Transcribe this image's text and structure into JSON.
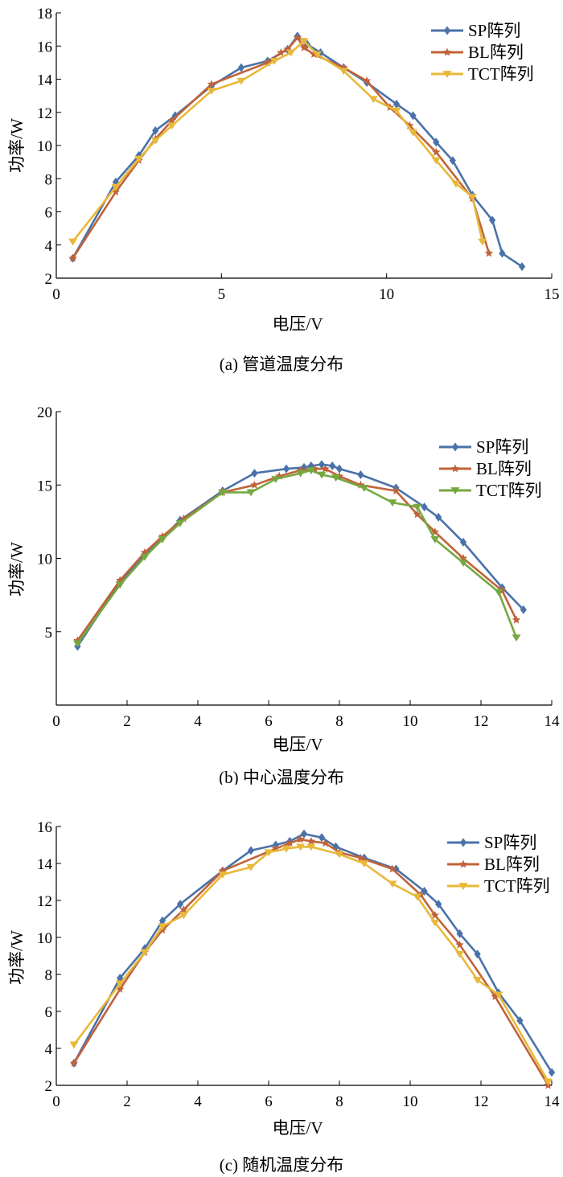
{
  "chart_data": [
    {
      "type": "line",
      "caption": "(a) 管道温度分布",
      "xlabel": "电压/V",
      "ylabel": "功率/W",
      "xlim": [
        0,
        15
      ],
      "ylim": [
        2,
        18
      ],
      "xticks": [
        0,
        5,
        10,
        15
      ],
      "yticks": [
        2,
        4,
        6,
        8,
        10,
        12,
        14,
        16,
        18
      ],
      "legend_position": "top-right",
      "series": [
        {
          "name": "SP阵列",
          "color": "#4a72a9",
          "marker": "diamond",
          "x": [
            0.5,
            1.8,
            2.5,
            3.0,
            3.6,
            4.7,
            5.6,
            6.4,
            7.0,
            7.3,
            7.6,
            8.0,
            8.7,
            9.4,
            10.3,
            10.8,
            11.5,
            12.0,
            12.6,
            13.2,
            13.5,
            14.1
          ],
          "y": [
            3.2,
            7.8,
            9.4,
            10.9,
            11.8,
            13.6,
            14.7,
            15.1,
            15.8,
            16.6,
            16.1,
            15.6,
            14.7,
            13.8,
            12.5,
            11.8,
            10.2,
            9.1,
            7.0,
            5.5,
            3.5,
            2.7
          ]
        },
        {
          "name": "BL阵列",
          "color": "#c0633a",
          "marker": "star",
          "x": [
            0.5,
            1.8,
            2.5,
            3.0,
            3.5,
            4.7,
            6.4,
            6.8,
            7.0,
            7.3,
            7.5,
            7.8,
            8.7,
            9.4,
            10.1,
            10.7,
            11.5,
            12.6,
            13.1
          ],
          "y": [
            3.2,
            7.2,
            9.1,
            10.4,
            11.5,
            13.7,
            15.0,
            15.6,
            15.8,
            16.5,
            15.9,
            15.5,
            14.7,
            13.9,
            12.3,
            11.2,
            9.6,
            6.8,
            3.5
          ],
          "x_continuation_note": ""
        },
        {
          "name": "TCT阵列",
          "color": "#e8b83a",
          "marker": "triangle-down",
          "x": [
            0.5,
            1.8,
            2.5,
            3.0,
            3.5,
            4.7,
            5.6,
            6.6,
            7.1,
            7.5,
            7.9,
            8.7,
            9.6,
            10.3,
            10.8,
            11.5,
            12.1,
            12.6,
            12.9
          ],
          "y": [
            4.2,
            7.5,
            9.2,
            10.3,
            11.2,
            13.3,
            13.9,
            15.1,
            15.6,
            16.3,
            15.5,
            14.5,
            12.8,
            12.1,
            10.8,
            9.1,
            7.7,
            6.9,
            4.2
          ]
        }
      ]
    },
    {
      "type": "line",
      "caption": "(b) 中心温度分布",
      "xlabel": "电压/V",
      "ylabel": "功率/W",
      "xlim": [
        0,
        14
      ],
      "ylim": [
        0,
        20
      ],
      "xticks": [
        0,
        2,
        4,
        6,
        8,
        10,
        12,
        14
      ],
      "yticks": [
        5,
        10,
        15,
        20
      ],
      "legend_position": "top-right",
      "series": [
        {
          "name": "SP阵列",
          "color": "#4a72a9",
          "marker": "diamond",
          "x": [
            0.6,
            1.8,
            2.5,
            3.0,
            3.5,
            4.7,
            5.6,
            6.5,
            7.0,
            7.2,
            7.5,
            7.8,
            8.0,
            8.6,
            9.6,
            10.4,
            10.8,
            11.5,
            12.6,
            13.2
          ],
          "y": [
            4.0,
            8.4,
            10.3,
            11.4,
            12.6,
            14.6,
            15.8,
            16.1,
            16.2,
            16.3,
            16.4,
            16.3,
            16.1,
            15.7,
            14.8,
            13.5,
            12.8,
            11.1,
            8.0,
            6.5
          ]
        },
        {
          "name": "BL阵列",
          "color": "#c0633a",
          "marker": "star",
          "x": [
            0.6,
            1.8,
            2.5,
            3.0,
            3.6,
            4.7,
            5.6,
            6.3,
            6.9,
            7.3,
            7.6,
            8.0,
            8.6,
            9.6,
            10.2,
            10.7,
            11.5,
            12.6,
            13.0
          ],
          "y": [
            4.4,
            8.5,
            10.4,
            11.5,
            12.7,
            14.5,
            15.0,
            15.6,
            16.0,
            16.1,
            16.1,
            15.6,
            15.0,
            14.6,
            13.0,
            11.8,
            10.0,
            7.8,
            5.8
          ]
        },
        {
          "name": "TCT阵列",
          "color": "#76a840",
          "marker": "triangle-down",
          "x": [
            0.6,
            1.8,
            2.5,
            3.0,
            3.5,
            4.7,
            5.5,
            6.2,
            6.9,
            7.2,
            7.5,
            7.9,
            8.7,
            9.5,
            10.2,
            10.7,
            11.5,
            12.5,
            13.0
          ],
          "y": [
            4.2,
            8.2,
            10.1,
            11.3,
            12.4,
            14.5,
            14.5,
            15.4,
            15.8,
            16.0,
            15.7,
            15.5,
            14.8,
            13.8,
            13.5,
            11.3,
            9.7,
            7.7,
            4.6
          ]
        }
      ]
    },
    {
      "type": "line",
      "caption": "(c) 随机温度分布",
      "xlabel": "电压/V",
      "ylabel": "功率/W",
      "xlim": [
        0,
        14
      ],
      "ylim": [
        2,
        16
      ],
      "xticks": [
        0,
        2,
        4,
        6,
        8,
        10,
        12,
        14
      ],
      "yticks": [
        2,
        4,
        6,
        8,
        10,
        12,
        14,
        16
      ],
      "legend_position": "top-right",
      "series": [
        {
          "name": "SP阵列",
          "color": "#4a72a9",
          "marker": "diamond",
          "x": [
            0.5,
            1.8,
            2.5,
            3.0,
            3.5,
            4.7,
            5.5,
            6.2,
            6.6,
            7.0,
            7.5,
            7.9,
            8.7,
            9.6,
            10.4,
            10.8,
            11.4,
            11.9,
            12.5,
            13.1,
            14.0
          ],
          "y": [
            3.2,
            7.8,
            9.4,
            10.9,
            11.8,
            13.6,
            14.7,
            15.0,
            15.2,
            15.6,
            15.4,
            14.9,
            14.3,
            13.7,
            12.5,
            11.8,
            10.2,
            9.1,
            7.0,
            5.5,
            2.7
          ]
        },
        {
          "name": "BL阵列",
          "color": "#c0633a",
          "marker": "star",
          "x": [
            0.5,
            1.8,
            2.5,
            3.0,
            3.6,
            4.7,
            6.2,
            6.6,
            6.9,
            7.2,
            7.6,
            8.0,
            8.6,
            9.5,
            10.3,
            10.7,
            11.4,
            12.4,
            13.9
          ],
          "y": [
            3.2,
            7.2,
            9.2,
            10.4,
            11.5,
            13.6,
            14.8,
            15.1,
            15.3,
            15.2,
            15.1,
            14.6,
            14.3,
            13.7,
            12.3,
            11.2,
            9.6,
            6.8,
            2.0
          ]
        },
        {
          "name": "TCT阵列",
          "color": "#e8b83a",
          "marker": "triangle-down",
          "x": [
            0.5,
            1.8,
            2.5,
            3.0,
            3.6,
            4.7,
            5.5,
            6.0,
            6.5,
            6.9,
            7.2,
            8.0,
            8.7,
            9.5,
            10.2,
            10.7,
            11.4,
            11.9,
            12.5,
            13.9
          ],
          "y": [
            4.2,
            7.5,
            9.2,
            10.6,
            11.2,
            13.4,
            13.8,
            14.6,
            14.8,
            14.9,
            14.9,
            14.5,
            14.0,
            12.9,
            12.2,
            10.8,
            9.1,
            7.7,
            6.9,
            2.2
          ]
        }
      ]
    }
  ]
}
